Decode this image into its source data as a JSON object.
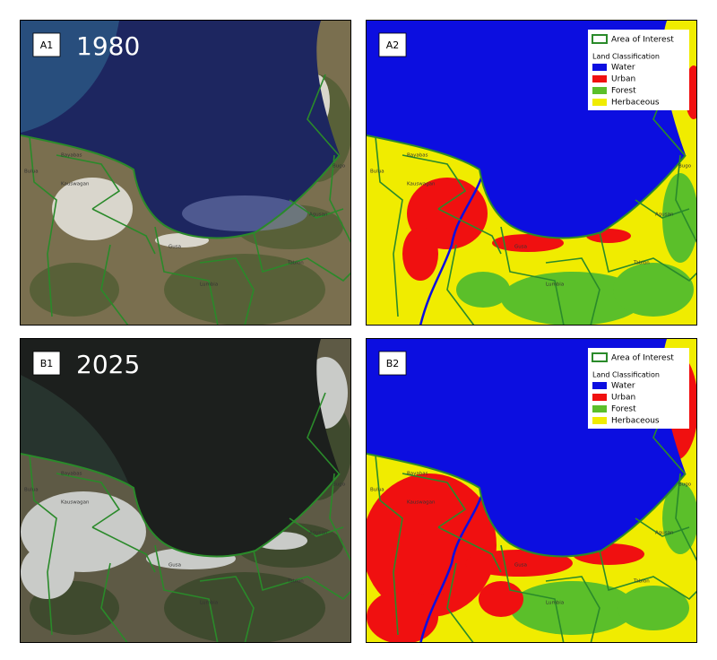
{
  "panels": [
    {
      "label": "A1",
      "year": "1980"
    },
    {
      "label": "A2"
    },
    {
      "label": "B1",
      "year": "2025"
    },
    {
      "label": "B2"
    }
  ],
  "legend": {
    "aoi": "Area of Interest",
    "title": "Land Classification",
    "classes": [
      "Water",
      "Urban",
      "Forest",
      "Herbaceous"
    ]
  },
  "places": [
    "Bayabas",
    "Kauswagan",
    "Bulua",
    "Gusa",
    "Agusan",
    "Tablon",
    "Bugo",
    "Lumbia"
  ]
}
